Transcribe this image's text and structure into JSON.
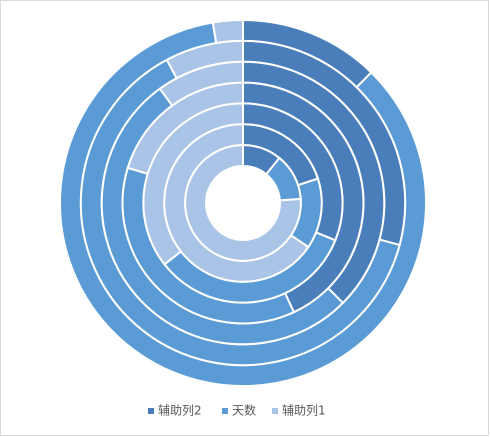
{
  "chart_data": {
    "type": "doughnut",
    "categories": [
      "辅助列2",
      "天数",
      "辅助列1"
    ],
    "colors": [
      "#4a7ebb",
      "#5b9bd5",
      "#a9c4e6"
    ],
    "rings": [
      {
        "values": [
          44.5,
          306,
          9.5
        ]
      },
      {
        "values": [
          105,
          227,
          28
        ]
      },
      {
        "values": [
          135,
          189,
          36
        ]
      },
      {
        "values": [
          155,
          132,
          73
        ]
      },
      {
        "values": [
          112,
          120,
          128
        ]
      },
      {
        "values": [
          72,
          52,
          236
        ]
      },
      {
        "values": [
          39,
          47,
          274
        ]
      }
    ],
    "legend": "bottom"
  }
}
